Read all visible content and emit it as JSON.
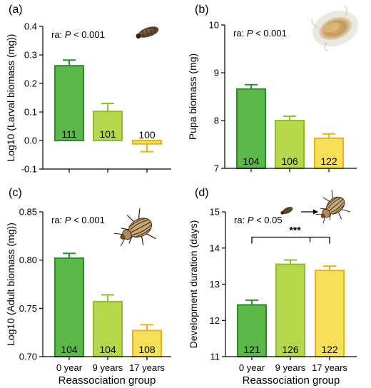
{
  "colors": {
    "g0": {
      "fill": "#5cb947",
      "stroke": "#2e8b32"
    },
    "g9": {
      "fill": "#b5d84a",
      "stroke": "#8fbe2c"
    },
    "g17": {
      "fill": "#f6e05a",
      "stroke": "#e2b419"
    }
  },
  "icons": [
    "larva-icon",
    "pupa-icon",
    "beetle-icon",
    "larva-to-beetle-icon"
  ],
  "chart_data": [
    {
      "panel": "(a)",
      "type": "bar",
      "categories": [
        "0 year",
        "9 years",
        "17 years"
      ],
      "values": [
        0.262,
        0.102,
        -0.012
      ],
      "errors": [
        0.02,
        0.028,
        0.027
      ],
      "n_labels": [
        "111",
        "101",
        "100"
      ],
      "stat_prefix": "ra: ",
      "stat_p": "P",
      "stat_suffix": " < 0.001",
      "ylabel": "Log10 (Larval biomass (mg))",
      "xlabel": "",
      "show_x_ticks": false,
      "ylim": [
        -0.1,
        0.4
      ],
      "yticks": [
        "-0.1",
        "0.0",
        "0.1",
        "0.2",
        "0.3",
        "0.4"
      ],
      "icon": "larva-icon"
    },
    {
      "panel": "(b)",
      "type": "bar",
      "categories": [
        "0 year",
        "9 years",
        "17 years"
      ],
      "values": [
        8.66,
        8.0,
        7.63
      ],
      "errors": [
        0.09,
        0.09,
        0.09
      ],
      "n_labels": [
        "104",
        "106",
        "122"
      ],
      "stat_prefix": "ra: ",
      "stat_p": "P",
      "stat_suffix": " < 0.001",
      "ylabel": "Pupa biomass (mg)",
      "xlabel": "",
      "show_x_ticks": false,
      "ylim": [
        7,
        10
      ],
      "yticks": [
        "7",
        "8",
        "9",
        "10"
      ],
      "icon": "pupa-icon"
    },
    {
      "panel": "(c)",
      "type": "bar",
      "categories": [
        "0 year",
        "9 years",
        "17 years"
      ],
      "values": [
        0.802,
        0.757,
        0.727
      ],
      "errors": [
        0.005,
        0.007,
        0.006
      ],
      "n_labels": [
        "104",
        "104",
        "108"
      ],
      "stat_prefix": "ra: ",
      "stat_p": "P",
      "stat_suffix": " < 0.001",
      "ylabel": "Log10 (Adult biomass (mg))",
      "xlabel": "Reassociation group",
      "show_x_ticks": true,
      "ylim": [
        0.7,
        0.85
      ],
      "yticks": [
        "0.70",
        "0.75",
        "0.80",
        "0.85"
      ],
      "icon": "beetle-icon"
    },
    {
      "panel": "(d)",
      "type": "bar",
      "categories": [
        "0 year",
        "9 years",
        "17 years"
      ],
      "values": [
        12.43,
        13.55,
        13.38
      ],
      "errors": [
        0.13,
        0.12,
        0.12
      ],
      "n_labels": [
        "121",
        "126",
        "122"
      ],
      "stat_prefix": "ra: ",
      "stat_p": "P",
      "stat_suffix": " < 0.05",
      "significance": "***",
      "ylabel": "Development duration (days)",
      "xlabel": "Reassociation group",
      "show_x_ticks": true,
      "ylim": [
        11,
        15
      ],
      "yticks": [
        "11",
        "12",
        "13",
        "14",
        "15"
      ],
      "icon": "larva-to-beetle-icon"
    }
  ]
}
